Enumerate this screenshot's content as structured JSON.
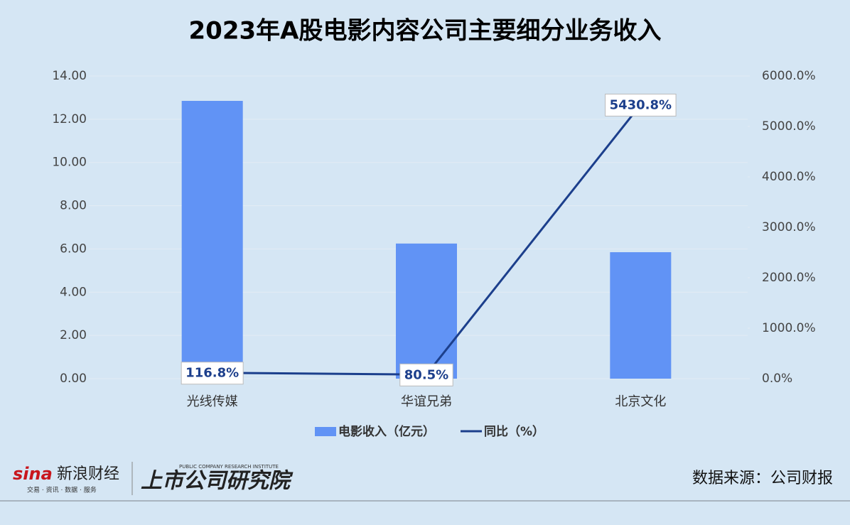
{
  "chart_data": {
    "type": "bar-line",
    "title": "2023年A股电影内容公司主要细分业务收入",
    "categories": [
      "光线传媒",
      "华谊兄弟",
      "北京文化"
    ],
    "series": [
      {
        "name": "电影收入（亿元）",
        "type": "bar",
        "color": "#6193f5",
        "values": [
          12.85,
          6.25,
          5.85
        ]
      },
      {
        "name": "同比（%）",
        "type": "line",
        "axis": "y2",
        "color": "#1c3f8c",
        "values": [
          116.8,
          80.5,
          5430.8
        ],
        "value_labels": [
          "116.8%",
          "80.5%",
          "5430.8%"
        ]
      }
    ],
    "ylim": [
      0,
      14
    ],
    "yticks": [
      {
        "value": 0,
        "label": "0.00"
      },
      {
        "value": 2,
        "label": "2.00"
      },
      {
        "value": 4,
        "label": "4.00"
      },
      {
        "value": 6,
        "label": "6.00"
      },
      {
        "value": 8,
        "label": "8.00"
      },
      {
        "value": 10,
        "label": "10.00"
      },
      {
        "value": 12,
        "label": "12.00"
      },
      {
        "value": 14,
        "label": "14.00"
      }
    ],
    "y2lim": [
      0,
      6000
    ],
    "y2ticks": [
      {
        "value": 0,
        "label": "0.0%"
      },
      {
        "value": 1000,
        "label": "1000.0%"
      },
      {
        "value": 2000,
        "label": "2000.0%"
      },
      {
        "value": 3000,
        "label": "3000.0%"
      },
      {
        "value": 4000,
        "label": "4000.0%"
      },
      {
        "value": 5000,
        "label": "5000.0%"
      },
      {
        "value": 6000,
        "label": "6000.0%"
      }
    ],
    "grid": true,
    "legend": "bottom"
  },
  "footer": {
    "brand": "新浪财经",
    "brand_logo": "sina",
    "brand_tagline": "交易 · 资讯 · 数据 · 服务",
    "institute": "上市公司研究院",
    "institute_en": "PUBLIC COMPANY RESEARCH INSTITUTE",
    "source": "数据来源：公司财报"
  }
}
